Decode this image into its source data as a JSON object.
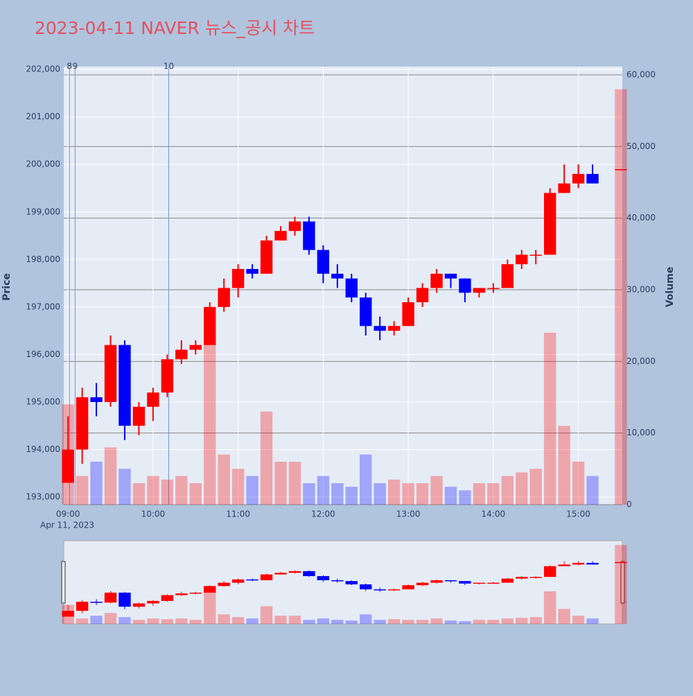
{
  "chart_data": {
    "type": "candlestick",
    "title": "2023-04-11 NAVER 뉴스_공시 차트",
    "y_label": "Price",
    "y2_label": "Volume",
    "x_date_label": "Apr 11, 2023",
    "increasing_color": "#ff0000",
    "decreasing_color": "#0000ff",
    "x": [
      "2023-04-11 09:00",
      "2023-04-11 09:10",
      "2023-04-11 09:20",
      "2023-04-11 09:30",
      "2023-04-11 09:40",
      "2023-04-11 09:50",
      "2023-04-11 10:00",
      "2023-04-11 10:10",
      "2023-04-11 10:20",
      "2023-04-11 10:30",
      "2023-04-11 10:40",
      "2023-04-11 10:50",
      "2023-04-11 11:00",
      "2023-04-11 11:10",
      "2023-04-11 11:20",
      "2023-04-11 11:30",
      "2023-04-11 11:40",
      "2023-04-11 11:50",
      "2023-04-11 12:00",
      "2023-04-11 12:10",
      "2023-04-11 12:20",
      "2023-04-11 12:30",
      "2023-04-11 12:40",
      "2023-04-11 12:50",
      "2023-04-11 13:00",
      "2023-04-11 13:10",
      "2023-04-11 13:20",
      "2023-04-11 13:30",
      "2023-04-11 13:40",
      "2023-04-11 13:50",
      "2023-04-11 14:00",
      "2023-04-11 14:10",
      "2023-04-11 14:20",
      "2023-04-11 14:30",
      "2023-04-11 14:40",
      "2023-04-11 14:50",
      "2023-04-11 15:00",
      "2023-04-11 15:10",
      "2023-04-11 15:30"
    ],
    "open": [
      193300,
      194000,
      195100,
      195000,
      196200,
      194500,
      194900,
      195200,
      195900,
      196100,
      196200,
      197000,
      197400,
      197800,
      197700,
      198400,
      198600,
      198800,
      198200,
      197700,
      197600,
      197200,
      196600,
      196500,
      196600,
      197100,
      197400,
      197700,
      197600,
      197300,
      197400,
      197400,
      197900,
      198100,
      198100,
      199400,
      199600,
      199800,
      199900
    ],
    "high": [
      194700,
      195300,
      195400,
      196400,
      196300,
      195000,
      195300,
      196000,
      196300,
      196300,
      197100,
      197600,
      197900,
      197900,
      198500,
      198700,
      198900,
      198900,
      198300,
      197900,
      197700,
      197300,
      196800,
      196700,
      197200,
      197500,
      197800,
      197700,
      197600,
      197400,
      197500,
      198000,
      198200,
      198200,
      199500,
      200000,
      200000,
      200000,
      199900
    ],
    "low": [
      193300,
      193700,
      194700,
      194900,
      194200,
      194300,
      194600,
      195100,
      195800,
      196000,
      196200,
      196900,
      197200,
      197600,
      197700,
      198400,
      198500,
      198100,
      197500,
      197400,
      197100,
      196400,
      196300,
      196400,
      196600,
      197000,
      197300,
      197400,
      197100,
      197200,
      197300,
      197400,
      197800,
      197900,
      198100,
      199400,
      199500,
      199600,
      199900
    ],
    "close": [
      194000,
      195100,
      195000,
      196200,
      194500,
      194900,
      195200,
      195900,
      196100,
      196200,
      197000,
      197400,
      197800,
      197700,
      198400,
      198600,
      198800,
      198200,
      197700,
      197600,
      197200,
      196600,
      196500,
      196600,
      197100,
      197400,
      197700,
      197600,
      197300,
      197400,
      197400,
      197900,
      198100,
      198100,
      199400,
      199600,
      199800,
      199600,
      199900
    ],
    "volume": [
      14000,
      4000,
      6000,
      8000,
      5000,
      3000,
      4000,
      3500,
      4000,
      3000,
      24000,
      7000,
      5000,
      4000,
      13000,
      6000,
      6000,
      3000,
      4000,
      3000,
      2500,
      7000,
      3000,
      3500,
      3000,
      3000,
      4000,
      2500,
      2000,
      3000,
      3000,
      4000,
      4500,
      5000,
      24000,
      11000,
      6000,
      4000,
      58000
    ],
    "markers": [
      {
        "x": "2023-04-11 09:01",
        "label": "8"
      },
      {
        "x": "2023-04-11 09:05",
        "label": "9"
      },
      {
        "x": "2023-04-11 10:11",
        "label": "10"
      }
    ],
    "xlim": [
      "2023-04-11 08:57",
      "2023-04-11 15:31"
    ],
    "xticks": [
      {
        "value": "2023-04-11 09:00",
        "label": "09:00"
      },
      {
        "value": "2023-04-11 10:00",
        "label": "10:00"
      },
      {
        "value": "2023-04-11 11:00",
        "label": "11:00"
      },
      {
        "value": "2023-04-11 12:00",
        "label": "12:00"
      },
      {
        "value": "2023-04-11 13:00",
        "label": "13:00"
      },
      {
        "value": "2023-04-11 14:00",
        "label": "14:00"
      },
      {
        "value": "2023-04-11 15:00",
        "label": "15:00"
      }
    ],
    "ylim": [
      192840,
      202060
    ],
    "yticks": [
      {
        "value": 193000,
        "label": "193,000"
      },
      {
        "value": 194000,
        "label": "194,000"
      },
      {
        "value": 195000,
        "label": "195,000"
      },
      {
        "value": 196000,
        "label": "196,000"
      },
      {
        "value": 197000,
        "label": "197,000"
      },
      {
        "value": 198000,
        "label": "198,000"
      },
      {
        "value": 199000,
        "label": "199,000"
      },
      {
        "value": 200000,
        "label": "200,000"
      },
      {
        "value": 201000,
        "label": "201,000"
      },
      {
        "value": 202000,
        "label": "202,000"
      }
    ],
    "y2lim": [
      0,
      61160
    ],
    "y2ticks": [
      0,
      {
        "value": 10000,
        "label": "10,000"
      },
      {
        "value": 20000,
        "label": "20,000"
      },
      {
        "value": 30000,
        "label": "30,000"
      },
      {
        "value": 40000,
        "label": "40,000"
      },
      {
        "value": 50000,
        "label": "50,000"
      },
      {
        "value": 60000,
        "label": "60,000"
      }
    ],
    "grid": true,
    "range_slider": true
  }
}
